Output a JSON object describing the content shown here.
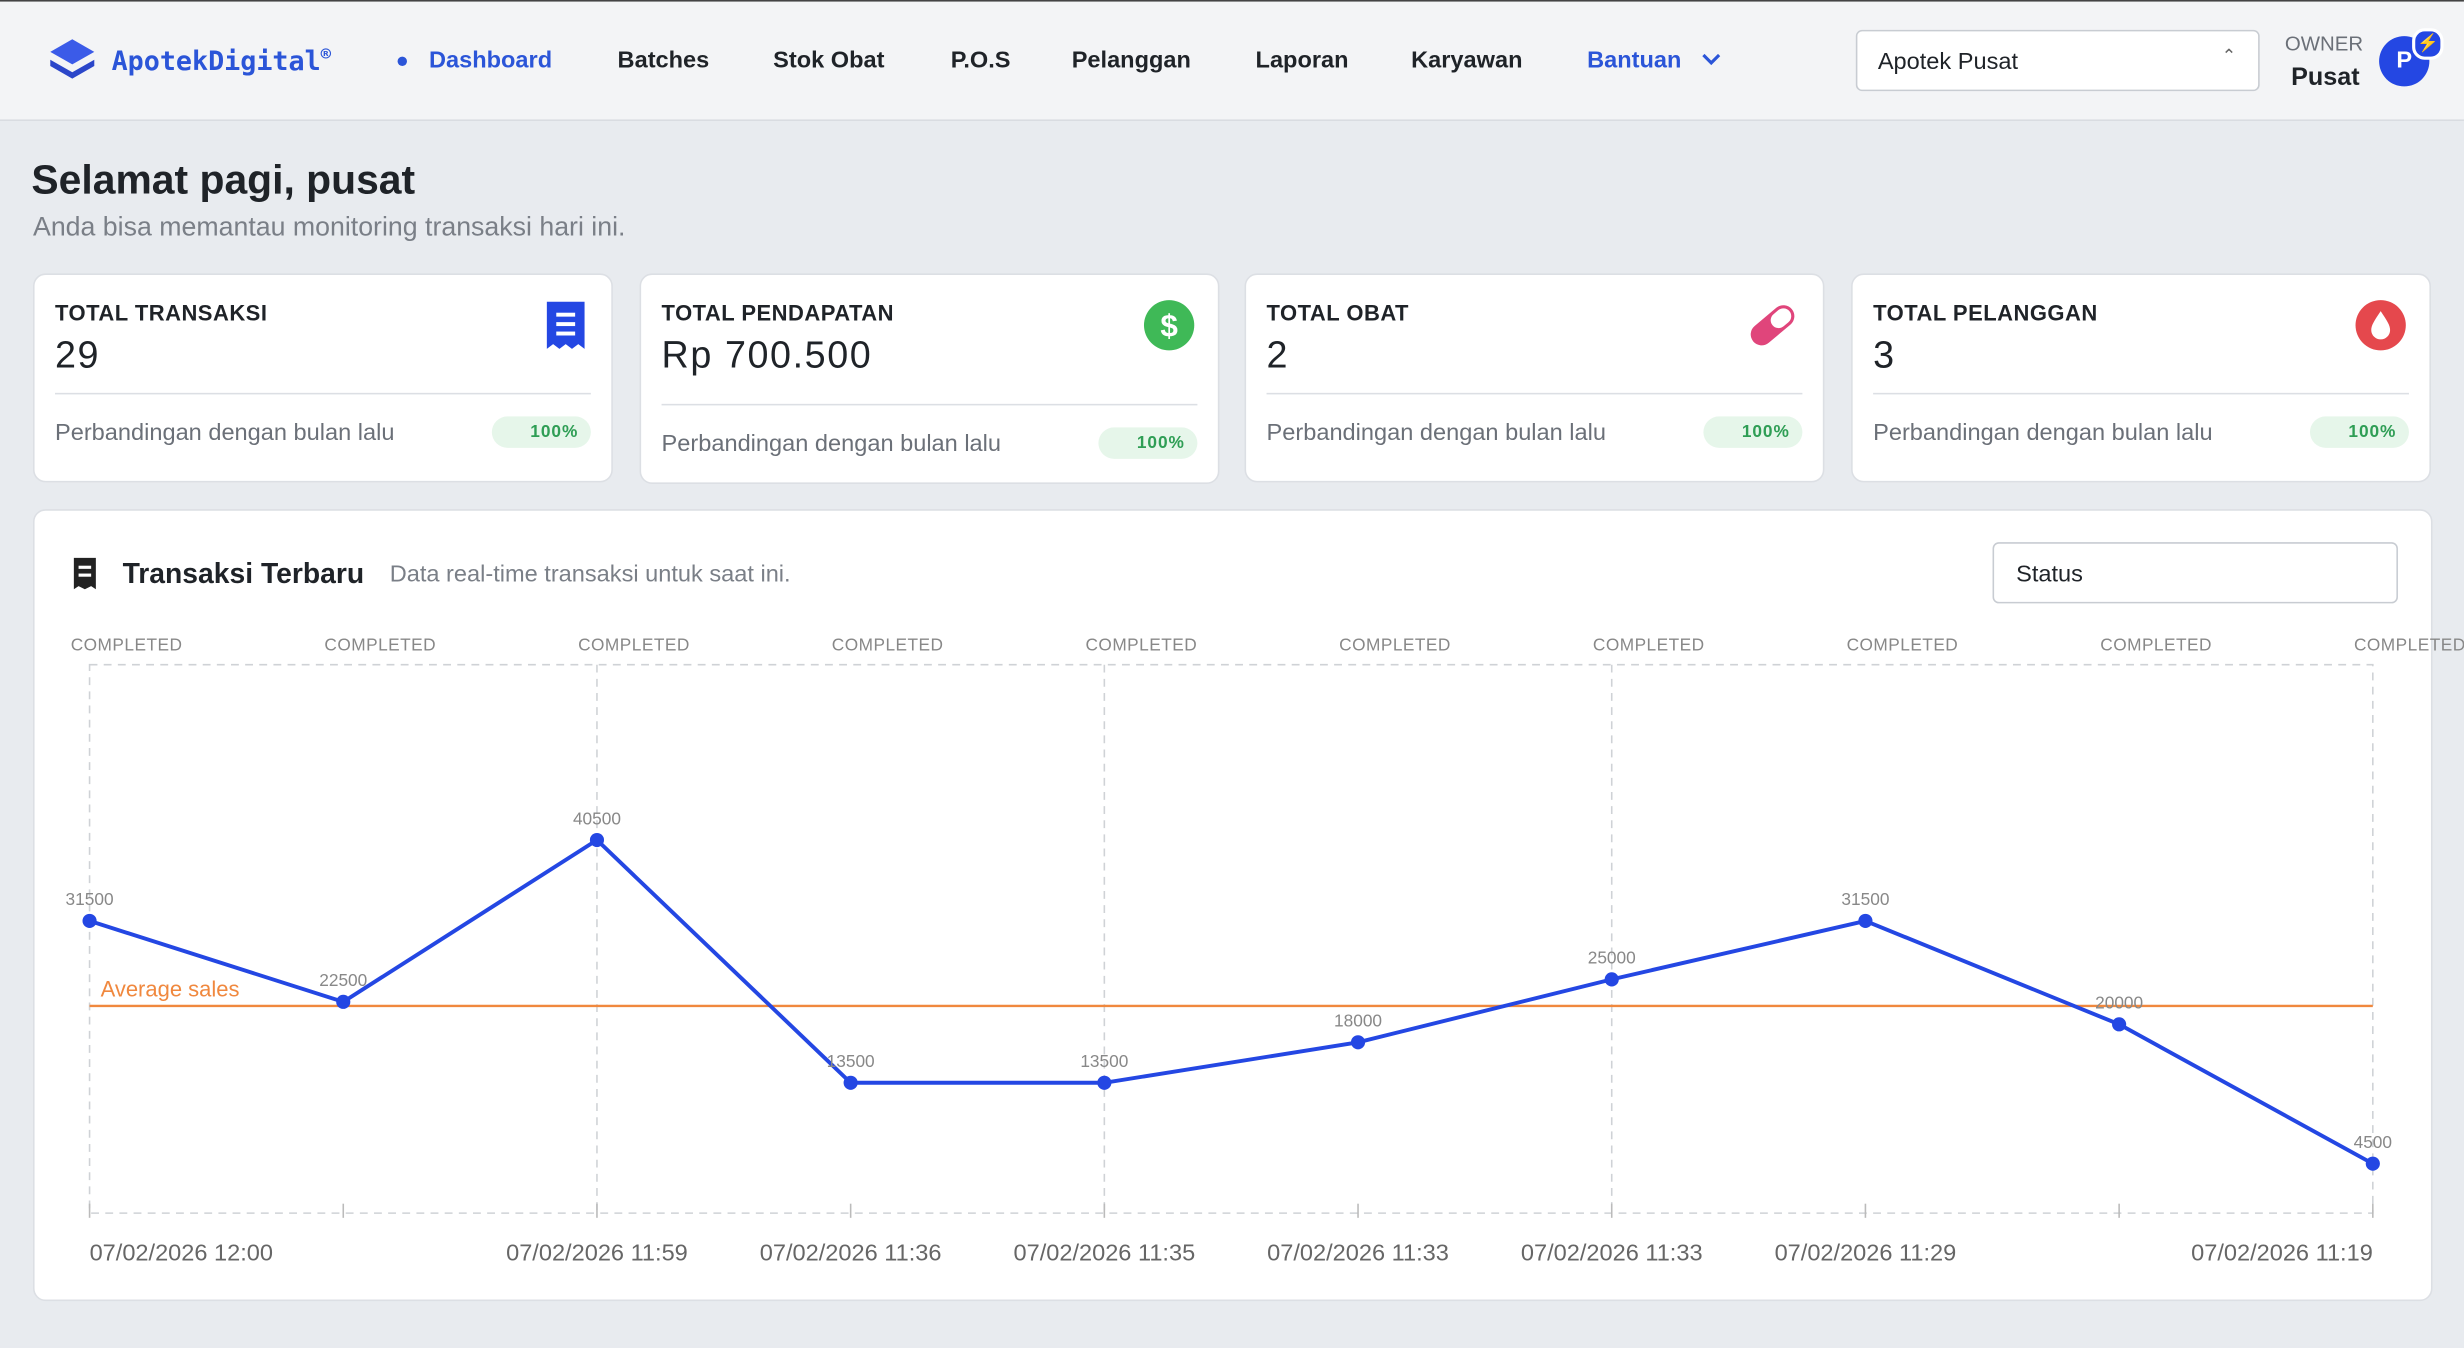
{
  "nav": {
    "brand": "ApotekDigital",
    "brand_mark": "®",
    "items": [
      "Dashboard",
      "Batches",
      "Stok Obat",
      "P.O.S",
      "Pelanggan",
      "Laporan",
      "Karyawan",
      "Bantuan"
    ],
    "store": "Apotek Pusat",
    "role": "OWNER",
    "user": "Pusat",
    "avatar": "P"
  },
  "header": {
    "title": "Selamat pagi, pusat",
    "subtitle": "Anda bisa memantau monitoring transaksi hari ini."
  },
  "cards": [
    {
      "title": "TOTAL TRANSAKSI",
      "value": "29",
      "compare": "Perbandingan dengan bulan lalu",
      "badge": "100%"
    },
    {
      "title": "TOTAL PENDAPATAN",
      "value": "Rp 700.500",
      "compare": "Perbandingan dengan bulan lalu",
      "badge": "100%"
    },
    {
      "title": "TOTAL OBAT",
      "value": "2",
      "compare": "Perbandingan dengan bulan lalu",
      "badge": "100%"
    },
    {
      "title": "TOTAL PELANGGAN",
      "value": "3",
      "compare": "Perbandingan dengan bulan lalu",
      "badge": "100%"
    }
  ],
  "panel": {
    "title": "Transaksi Terbaru",
    "subtitle": "Data real-time transaksi untuk saat ini.",
    "filter": "Status"
  },
  "chart_data": {
    "type": "line",
    "categories": [
      "07/02/2026 12:00",
      null,
      "07/02/2026 11:59",
      "07/02/2026 11:36",
      "07/02/2026 11:35",
      "07/02/2026 11:33",
      "07/02/2026 11:33",
      "07/02/2026 11:29",
      null,
      "07/02/2026 11:19"
    ],
    "point_labels": [
      "COMPLETED",
      "COMPLETED",
      "COMPLETED",
      "COMPLETED",
      "COMPLETED",
      "COMPLETED",
      "COMPLETED",
      "COMPLETED",
      "COMPLETED",
      "COMPLETED"
    ],
    "values": [
      31500,
      22500,
      40500,
      13500,
      13500,
      18000,
      25000,
      31500,
      20000,
      4500
    ],
    "color": "#2447e3",
    "ylim": [
      -1000,
      60000
    ],
    "average_line": {
      "label": "Average sales",
      "value": 22050,
      "color": "#f0883e"
    }
  }
}
